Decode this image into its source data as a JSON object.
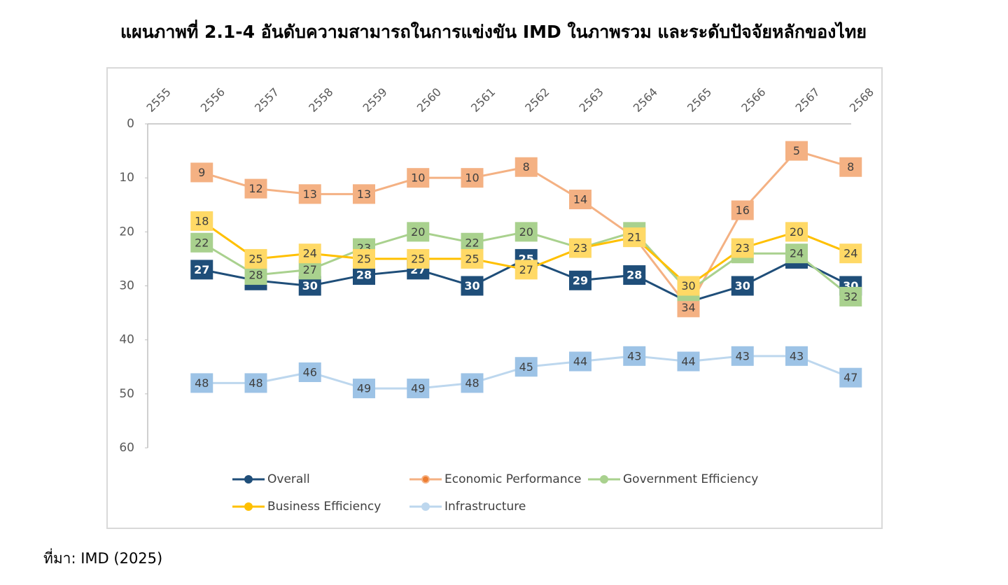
{
  "chart_data": {
    "type": "line",
    "title": "แผนภาพที่ 2.1-4 อันดับความสามารถในการแข่งขัน IMD ในภาพรวม และระดับปัจจัยหลักของไทย",
    "source": "ที่มา: IMD (2025)",
    "categories": [
      "2555",
      "2556",
      "2557",
      "2558",
      "2559",
      "2560",
      "2561",
      "2562",
      "2563",
      "2564",
      "2565",
      "2566",
      "2567",
      "2568"
    ],
    "series": [
      {
        "name": "Overall",
        "color": "#1f4e79",
        "label_color": "#ffffff",
        "values": [
          null,
          27,
          29,
          30,
          28,
          27,
          30,
          25,
          29,
          28,
          33,
          30,
          25,
          30
        ]
      },
      {
        "name": "Economic Performance",
        "color": "#f4b183",
        "label_color": "#404040",
        "values": [
          null,
          9,
          12,
          13,
          13,
          10,
          10,
          8,
          14,
          21,
          34,
          16,
          5,
          8
        ]
      },
      {
        "name": "Government Efficiency",
        "color": "#a9d18e",
        "label_color": "#404040",
        "values": [
          null,
          22,
          28,
          27,
          23,
          20,
          22,
          20,
          23,
          20,
          31,
          24,
          24,
          32
        ]
      },
      {
        "name": "Business Efficiency",
        "color": "#ffc000",
        "label_color": "#404040",
        "values": [
          null,
          18,
          25,
          24,
          25,
          25,
          25,
          27,
          23,
          21,
          30,
          23,
          20,
          24
        ]
      },
      {
        "name": "Infrastructure",
        "color": "#bdd7ee",
        "label_color": "#404040",
        "values": [
          null,
          48,
          48,
          46,
          49,
          49,
          48,
          45,
          44,
          43,
          44,
          43,
          43,
          47
        ]
      }
    ],
    "ylim": [
      0,
      60
    ],
    "yticks": [
      0,
      10,
      20,
      30,
      40,
      50,
      60
    ],
    "y_inverted": true,
    "legend": "bottom",
    "grid": false
  }
}
